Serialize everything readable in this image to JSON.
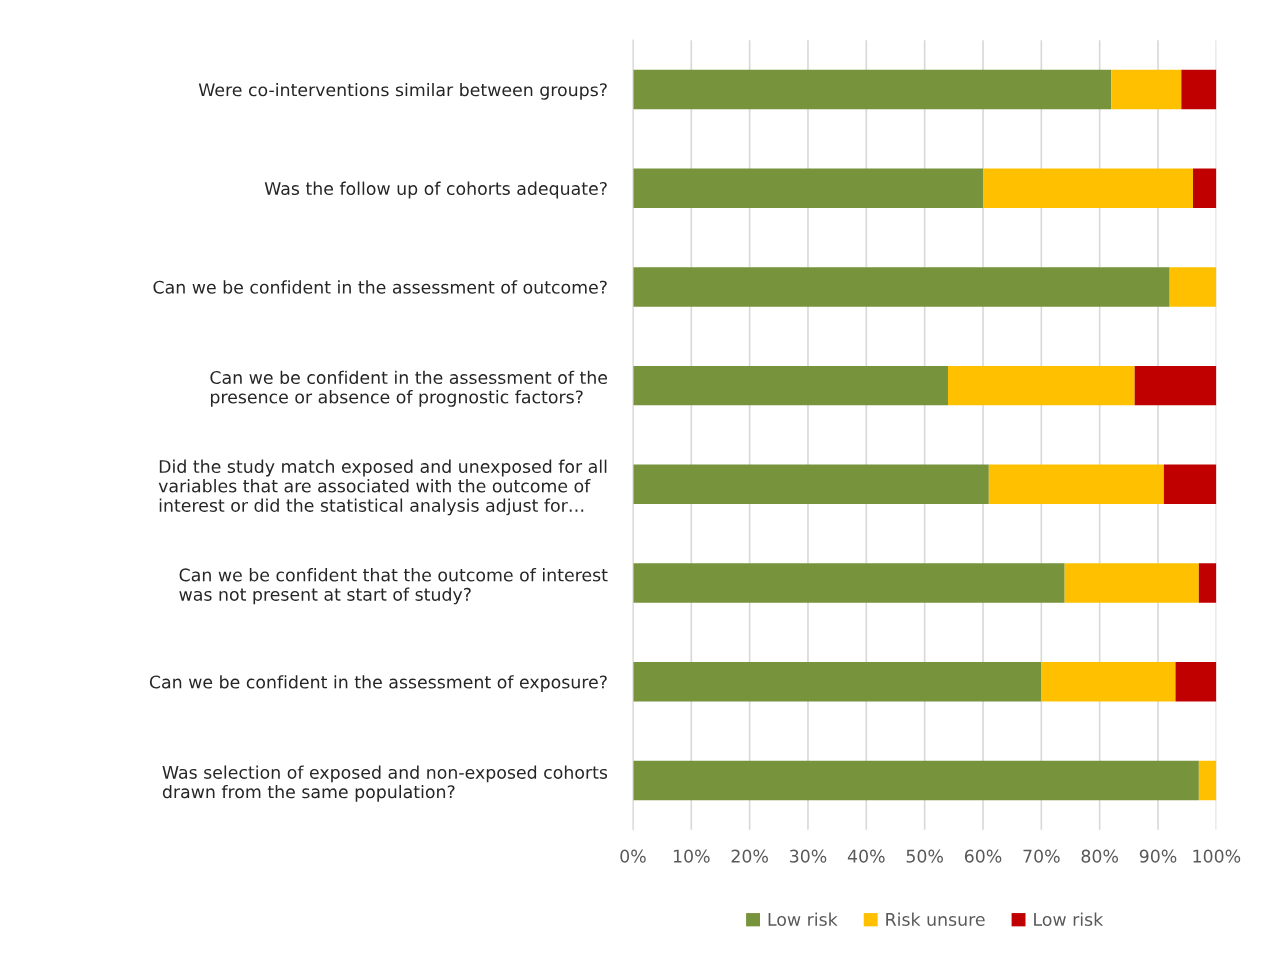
{
  "chart_data": {
    "type": "bar",
    "orientation": "horizontal",
    "stacked": true,
    "categories": [
      "Were co-interventions similar between groups?",
      "Was the follow up of cohorts adequate?",
      "Can we be confident in the assessment of outcome?",
      "Can we be confident in the assessment of the\npresence or absence of prognostic factors?",
      "Did the study match exposed and unexposed for all\nvariables that are associated with the outcome of\ninterest or did the statistical analysis adjust for…",
      "Can we be confident that the outcome of interest\nwas not present at start of study?",
      "Can we be confident in the assessment of exposure?",
      "Was selection of exposed and non-exposed cohorts\ndrawn from the same population?"
    ],
    "series": [
      {
        "name": "Low risk",
        "color": "#77933c",
        "values": [
          82,
          60,
          92,
          54,
          61,
          74,
          70,
          97
        ]
      },
      {
        "name": "Risk unsure",
        "color": "#ffc000",
        "values": [
          12,
          36,
          8,
          32,
          30,
          23,
          23,
          3
        ]
      },
      {
        "name": "Low risk",
        "color": "#c00000",
        "values": [
          6,
          4,
          0,
          14,
          9,
          3,
          7,
          0
        ]
      }
    ],
    "xlim": [
      0,
      100
    ],
    "xticks": [
      {
        "value": 0,
        "label": "0%"
      },
      {
        "value": 10,
        "label": "10%"
      },
      {
        "value": 20,
        "label": "20%"
      },
      {
        "value": 30,
        "label": "30%"
      },
      {
        "value": 40,
        "label": "40%"
      },
      {
        "value": 50,
        "label": "50%"
      },
      {
        "value": 60,
        "label": "60%"
      },
      {
        "value": 70,
        "label": "70%"
      },
      {
        "value": 80,
        "label": "80%"
      },
      {
        "value": 90,
        "label": "90%"
      },
      {
        "value": 100,
        "label": "100%"
      }
    ],
    "grid": "x",
    "legend": "bottom"
  }
}
